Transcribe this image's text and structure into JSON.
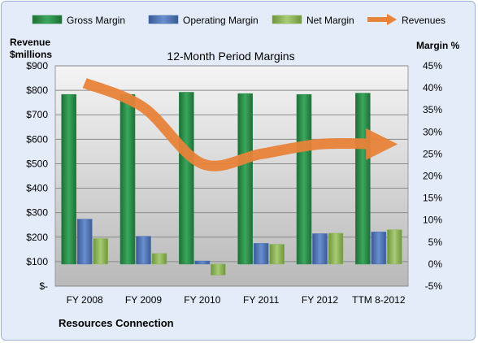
{
  "chart_data": {
    "type": "bar",
    "title": "12-Month Period Margins",
    "company": "Resources Connection",
    "y_left_label": [
      "Revenue",
      "$millions"
    ],
    "y_right_label": "Margin %",
    "categories": [
      "FY 2008",
      "FY 2009",
      "FY 2010",
      "FY 2011",
      "FY 2012",
      "TTM 8-2012"
    ],
    "y_left_ticks": [
      "$-",
      "$100",
      "$200",
      "$300",
      "$400",
      "$500",
      "$600",
      "$700",
      "$800",
      "$900"
    ],
    "y_left_range": [
      0,
      900
    ],
    "y_right_ticks": [
      "-5%",
      "0%",
      "5%",
      "10%",
      "15%",
      "20%",
      "25%",
      "30%",
      "35%",
      "40%",
      "45%"
    ],
    "y_right_range": [
      -5,
      45
    ],
    "series": [
      {
        "name": "Gross Margin",
        "axis": "right",
        "color": "#2e8b4a",
        "values": [
          38.5,
          38.5,
          39.0,
          38.7,
          38.5,
          38.8
        ]
      },
      {
        "name": "Operating Margin",
        "axis": "right",
        "color": "#4f74b8",
        "values": [
          10.2,
          6.3,
          0.7,
          4.7,
          6.9,
          7.3
        ]
      },
      {
        "name": "Net Margin",
        "axis": "right",
        "color": "#8fb85a",
        "values": [
          5.8,
          2.4,
          -2.5,
          4.5,
          7.0,
          7.8
        ]
      },
      {
        "name": "Revenues",
        "axis": "left",
        "type": "line",
        "color": "#e8833a",
        "values": [
          830,
          730,
          500,
          540,
          580,
          580
        ]
      }
    ],
    "grid": true,
    "legend": "top"
  }
}
